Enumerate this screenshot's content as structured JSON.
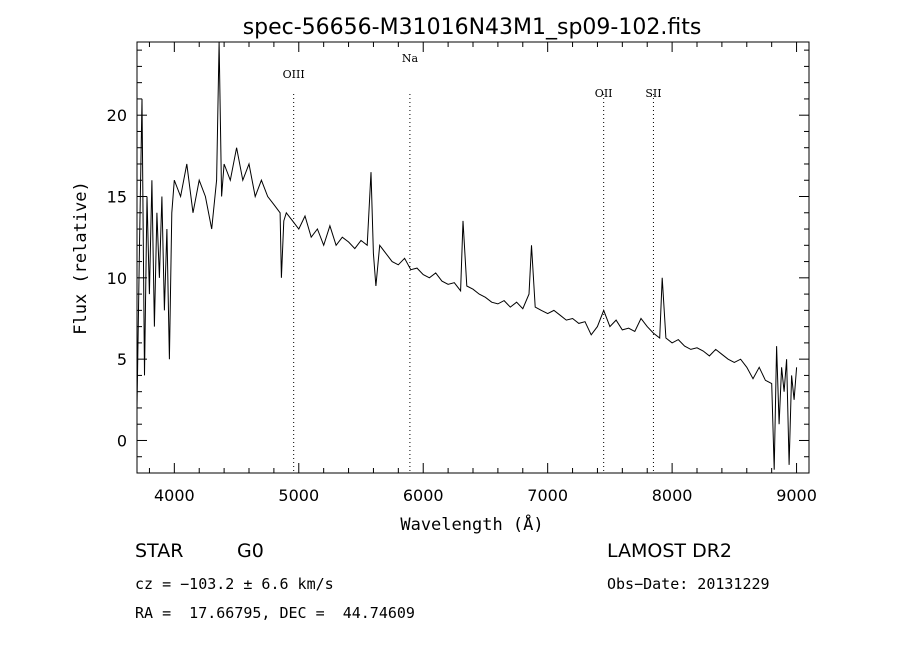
{
  "chart_data": {
    "type": "line",
    "title": "spec-56656-M31016N43M1_sp09-102.fits",
    "xlabel": "Wavelength (Å)",
    "ylabel": "Flux (relative)",
    "xlim": [
      3700,
      9100
    ],
    "ylim": [
      -2,
      24.5
    ],
    "x_ticks": [
      4000,
      5000,
      6000,
      7000,
      8000,
      9000
    ],
    "y_ticks": [
      0,
      5,
      10,
      15,
      20
    ],
    "grid": false,
    "lines": [
      {
        "label": "OIII",
        "x": 4959
      },
      {
        "label": "Na",
        "x": 5893
      },
      {
        "label": "OII",
        "x": 7450
      },
      {
        "label": "SII",
        "x": 7850
      }
    ],
    "series": [
      {
        "x": [
          3700,
          3720,
          3740,
          3760,
          3780,
          3800,
          3820,
          3840,
          3860,
          3880,
          3900,
          3920,
          3940,
          3960,
          3980,
          4000,
          4050,
          4100,
          4150,
          4200,
          4250,
          4300,
          4340,
          4360,
          4380,
          4400,
          4450,
          4500,
          4550,
          4600,
          4650,
          4700,
          4750,
          4800,
          4850,
          4860,
          4880,
          4900,
          4950,
          5000,
          5050,
          5100,
          5150,
          5200,
          5250,
          5300,
          5350,
          5400,
          5450,
          5500,
          5550,
          5580,
          5600,
          5620,
          5650,
          5700,
          5750,
          5800,
          5850,
          5900,
          5950,
          6000,
          6050,
          6100,
          6150,
          6200,
          6250,
          6300,
          6320,
          6350,
          6400,
          6450,
          6500,
          6550,
          6600,
          6650,
          6700,
          6750,
          6800,
          6850,
          6870,
          6900,
          6950,
          7000,
          7050,
          7100,
          7150,
          7200,
          7250,
          7300,
          7350,
          7400,
          7450,
          7500,
          7550,
          7600,
          7650,
          7700,
          7750,
          7800,
          7850,
          7900,
          7920,
          7950,
          8000,
          8050,
          8100,
          8150,
          8200,
          8250,
          8300,
          8350,
          8400,
          8450,
          8500,
          8550,
          8600,
          8650,
          8700,
          8750,
          8800,
          8820,
          8840,
          8860,
          8880,
          8900,
          8920,
          8940,
          8960,
          8980,
          9000
        ],
        "values": [
          2,
          12,
          21,
          4,
          15,
          9,
          16,
          7,
          14,
          10,
          15,
          8,
          13,
          5,
          14,
          16,
          15,
          17,
          14,
          16,
          15,
          13,
          16,
          24.5,
          15,
          17,
          16,
          18,
          16,
          17,
          15,
          16,
          15,
          14.5,
          14,
          10,
          13.5,
          14,
          13.5,
          13,
          13.8,
          12.5,
          13,
          12,
          13.2,
          12,
          12.5,
          12.2,
          11.8,
          12.3,
          12,
          16.5,
          11.5,
          9.5,
          12,
          11.5,
          11,
          10.8,
          11.2,
          10.5,
          10.6,
          10.2,
          10,
          10.3,
          9.8,
          9.6,
          9.7,
          9.2,
          13.5,
          9.5,
          9.3,
          9,
          8.8,
          8.5,
          8.4,
          8.6,
          8.2,
          8.5,
          8.1,
          9,
          12,
          8.2,
          8,
          7.8,
          8,
          7.7,
          7.4,
          7.5,
          7.2,
          7.3,
          6.5,
          7,
          8,
          7,
          7.4,
          6.8,
          6.9,
          6.7,
          7.5,
          7,
          6.6,
          6.3,
          10,
          6.3,
          6,
          6.2,
          5.8,
          5.6,
          5.7,
          5.5,
          5.2,
          5.6,
          5.3,
          5,
          4.8,
          5,
          4.5,
          3.8,
          4.5,
          3.7,
          3.5,
          -1.8,
          5.8,
          1,
          4.5,
          3,
          5,
          -1.5,
          4,
          2.5,
          4.5
        ]
      }
    ]
  },
  "info": {
    "object_class": "STAR",
    "subclass": "G0",
    "survey": "LAMOST DR2",
    "cz": "cz = −103.2 ± 6.6 km/s",
    "obs_date": "Obs−Date: 20131229",
    "coords": "RA =  17.66795, DEC =  44.74609"
  }
}
